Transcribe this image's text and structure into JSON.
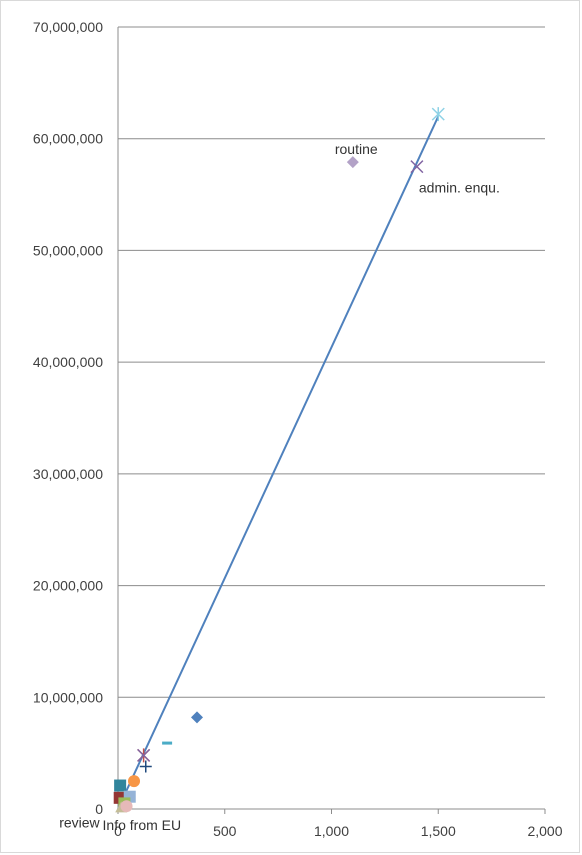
{
  "chart_data": {
    "type": "scatter",
    "title": "",
    "xlabel": "",
    "ylabel": "",
    "xlim": [
      0,
      2000
    ],
    "ylim": [
      0,
      70000000
    ],
    "x_ticks": [
      0,
      500,
      1000,
      1500,
      2000
    ],
    "x_tick_labels": [
      "0",
      "500",
      "1,000",
      "1,500",
      "2,000"
    ],
    "y_ticks": [
      0,
      10000000,
      20000000,
      30000000,
      40000000,
      50000000,
      60000000,
      70000000
    ],
    "y_tick_labels": [
      "0",
      "10,000,000",
      "20,000,000",
      "30,000,000",
      "40,000,000",
      "50,000,000",
      "60,000,000",
      "70,000,000"
    ],
    "grid": "horizontal",
    "legend": "none",
    "trendline": {
      "x": [
        0,
        1500
      ],
      "y": [
        0,
        62000000
      ],
      "color": "#4f81bd"
    },
    "points": [
      {
        "x": 1500,
        "y": 62200000,
        "marker": "star",
        "color": "#8ed2e6",
        "label": ""
      },
      {
        "x": 1100,
        "y": 57900000,
        "marker": "diamond",
        "color": "#b3a2c7",
        "label": "routine"
      },
      {
        "x": 1400,
        "y": 57500000,
        "marker": "x",
        "color": "#8064a2",
        "label": "admin. enqu."
      },
      {
        "x": 370,
        "y": 8200000,
        "marker": "diamond",
        "color": "#4f81bd",
        "label": ""
      },
      {
        "x": 230,
        "y": 5900000,
        "marker": "dash",
        "color": "#4bacc6",
        "label": ""
      },
      {
        "x": 120,
        "y": 4800000,
        "marker": "star",
        "color": "#c0504d",
        "label": ""
      },
      {
        "x": 120,
        "y": 4800000,
        "marker": "x",
        "color": "#8064a2",
        "label": ""
      },
      {
        "x": 130,
        "y": 3800000,
        "marker": "plus",
        "color": "#1f497d",
        "label": ""
      },
      {
        "x": 75,
        "y": 2500000,
        "marker": "circle",
        "color": "#f79646",
        "label": ""
      },
      {
        "x": 10,
        "y": 2100000,
        "marker": "square",
        "color": "#31859c",
        "label": ""
      },
      {
        "x": 8,
        "y": 1000000,
        "marker": "square",
        "color": "#943634",
        "label": ""
      },
      {
        "x": 55,
        "y": 1100000,
        "marker": "square",
        "color": "#95b3d7",
        "label": ""
      },
      {
        "x": 30,
        "y": 500000,
        "marker": "square",
        "color": "#9bbb59",
        "label": ""
      },
      {
        "x": 15,
        "y": 150000,
        "marker": "triangle",
        "color": "#c4bd97",
        "label": "review"
      },
      {
        "x": 40,
        "y": 250000,
        "marker": "circle",
        "color": "#e6b9b8",
        "label": "Info from EU"
      }
    ]
  }
}
